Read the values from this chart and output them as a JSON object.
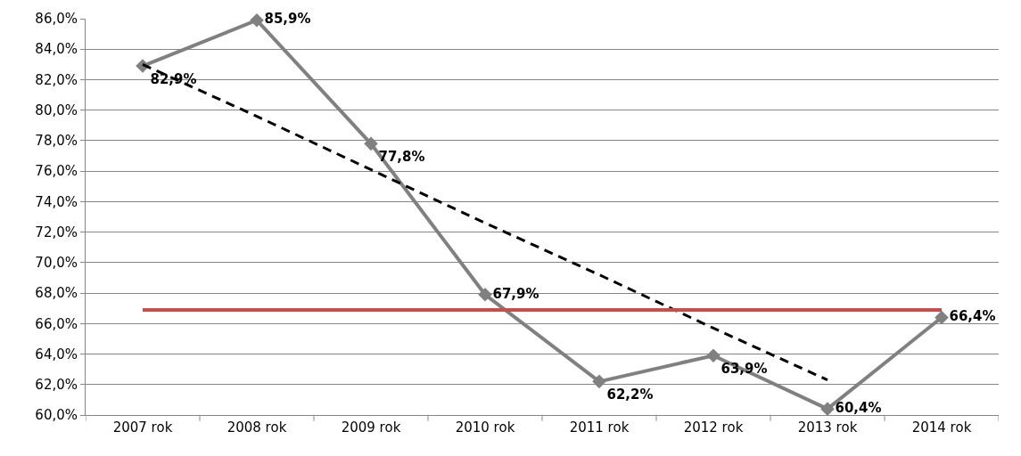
{
  "chart_data": {
    "type": "line",
    "categories": [
      "2007 rok",
      "2008 rok",
      "2009 rok",
      "2010 rok",
      "2011 rok",
      "2012 rok",
      "2013 rok",
      "2014 rok"
    ],
    "series": [
      {
        "color": "#808080",
        "values": [
          82.9,
          85.9,
          77.8,
          67.9,
          62.2,
          63.9,
          60.4,
          66.4
        ],
        "value_labels": [
          "82,9%",
          "85,9%",
          "77,8%",
          "67,9%",
          "62,2%",
          "63,9%",
          "60,4%",
          "66,4%"
        ],
        "marker": "diamond"
      },
      {
        "color": "#000000",
        "values": [
          83.0,
          79.6,
          76.1,
          72.6,
          69.2,
          65.7,
          62.3,
          null
        ],
        "line_style": "dashed",
        "marker": "none"
      }
    ],
    "ref_lines": [
      {
        "axis": "y",
        "value": 66.9,
        "color": "#c0504d"
      }
    ],
    "ylim": [
      60,
      86
    ],
    "yticks": [
      {
        "value": 60,
        "label": "60,0%"
      },
      {
        "value": 62,
        "label": "62,0%"
      },
      {
        "value": 64,
        "label": "64,0%"
      },
      {
        "value": 66,
        "label": "66,0%"
      },
      {
        "value": 68,
        "label": "68,0%"
      },
      {
        "value": 70,
        "label": "70,0%"
      },
      {
        "value": 72,
        "label": "72,0%"
      },
      {
        "value": 74,
        "label": "74,0%"
      },
      {
        "value": 76,
        "label": "76,0%"
      },
      {
        "value": 78,
        "label": "78,0%"
      },
      {
        "value": 80,
        "label": "80,0%"
      },
      {
        "value": 82,
        "label": "82,0%"
      },
      {
        "value": 84,
        "label": "84,0%"
      },
      {
        "value": 86,
        "label": "86,0%"
      }
    ],
    "grid": "y"
  }
}
